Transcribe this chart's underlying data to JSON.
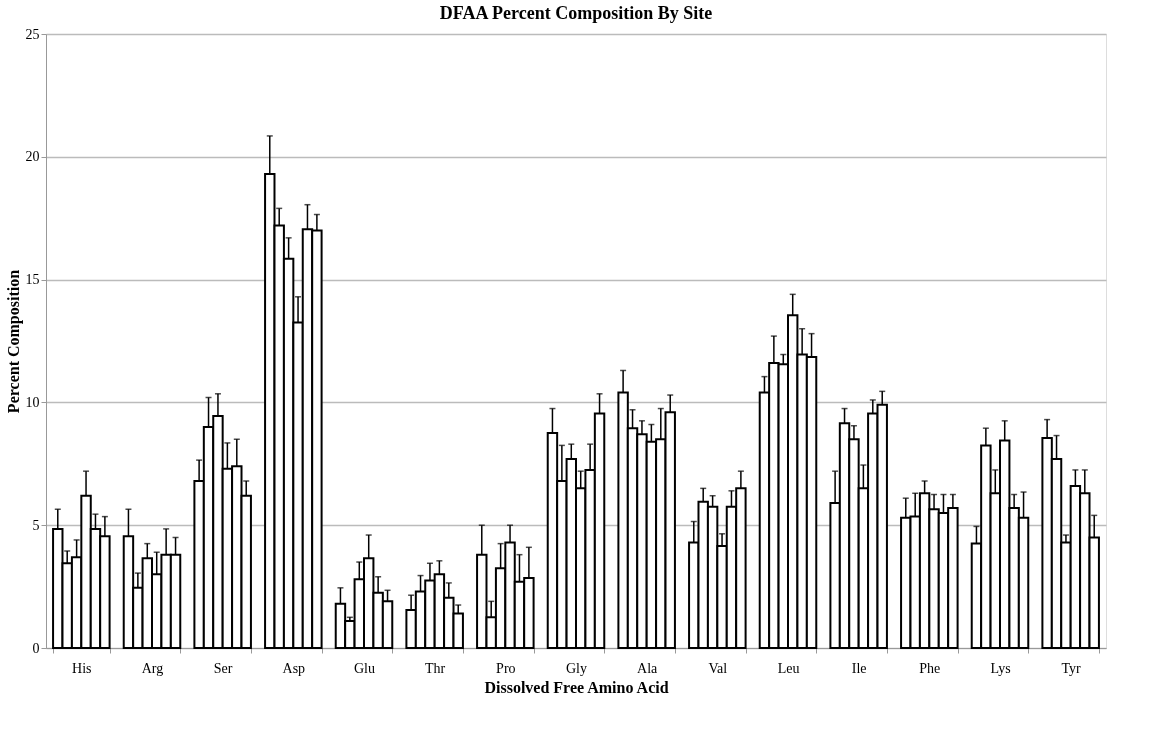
{
  "chart_data": {
    "type": "bar",
    "title": "DFAA Percent Composition By Site",
    "xlabel": "Dissolved Free Amino Acid",
    "ylabel": "Percent Composition",
    "categories": [
      "His",
      "Arg",
      "Ser",
      "Asp",
      "Glu",
      "Thr",
      "Pro",
      "Gly",
      "Ala",
      "Val",
      "Leu",
      "Ile",
      "Phe",
      "Lys",
      "Tyr"
    ],
    "series": [
      {
        "color": "#ffffff",
        "values": [
          4.85,
          4.55,
          6.8,
          19.3,
          1.8,
          1.55,
          3.8,
          8.75,
          10.4,
          4.3,
          10.4,
          5.9,
          5.3,
          4.25,
          8.55
        ],
        "errors": [
          [
            4.85,
            5.65
          ],
          [
            4.55,
            5.65
          ],
          [
            6.8,
            7.65
          ],
          [
            19.3,
            20.85
          ],
          [
            1.8,
            2.45
          ],
          [
            1.55,
            2.15
          ],
          [
            3.8,
            5.0
          ],
          [
            8.75,
            9.75
          ],
          [
            10.4,
            11.3
          ],
          [
            4.3,
            5.15
          ],
          [
            10.4,
            11.05
          ],
          [
            5.9,
            7.2
          ],
          [
            5.3,
            6.1
          ],
          [
            4.25,
            4.95
          ],
          [
            8.55,
            9.3
          ]
        ]
      },
      {
        "color": "#ffffff",
        "values": [
          3.45,
          2.45,
          9.0,
          17.2,
          1.1,
          2.3,
          1.25,
          6.8,
          8.95,
          5.95,
          11.6,
          9.15,
          5.35,
          8.25,
          7.7
        ],
        "errors": [
          [
            3.45,
            3.95
          ],
          [
            2.45,
            3.05
          ],
          [
            9.0,
            10.2
          ],
          [
            17.2,
            17.9
          ],
          [
            1.1,
            1.25
          ],
          [
            2.3,
            2.95
          ],
          [
            1.25,
            1.9
          ],
          [
            6.8,
            8.25
          ],
          [
            8.95,
            9.7
          ],
          [
            5.95,
            6.5
          ],
          [
            11.6,
            12.7
          ],
          [
            9.15,
            9.75
          ],
          [
            5.35,
            6.3
          ],
          [
            8.25,
            8.95
          ],
          [
            7.7,
            8.65
          ]
        ]
      },
      {
        "color": "#ffffff",
        "values": [
          3.7,
          3.65,
          9.45,
          15.85,
          2.8,
          2.75,
          3.25,
          7.7,
          8.7,
          5.75,
          11.55,
          8.5,
          6.3,
          6.3,
          4.3
        ],
        "errors": [
          [
            3.7,
            4.4
          ],
          [
            3.65,
            4.25
          ],
          [
            9.45,
            10.35
          ],
          [
            15.85,
            16.7
          ],
          [
            2.8,
            3.5
          ],
          [
            2.75,
            3.45
          ],
          [
            3.25,
            4.25
          ],
          [
            7.7,
            8.3
          ],
          [
            8.7,
            9.25
          ],
          [
            5.75,
            6.2
          ],
          [
            11.55,
            11.95
          ],
          [
            8.5,
            9.05
          ],
          [
            6.3,
            6.8
          ],
          [
            6.3,
            7.25
          ],
          [
            4.3,
            4.6
          ]
        ]
      },
      {
        "color": "#ffffff",
        "values": [
          6.2,
          3.0,
          7.3,
          13.25,
          3.65,
          3.0,
          4.3,
          6.5,
          8.4,
          4.15,
          13.55,
          6.5,
          5.65,
          8.45,
          6.6
        ],
        "errors": [
          [
            6.2,
            7.2
          ],
          [
            3.0,
            3.9
          ],
          [
            7.3,
            8.35
          ],
          [
            13.25,
            14.3
          ],
          [
            3.65,
            4.6
          ],
          [
            3.0,
            3.55
          ],
          [
            4.3,
            5.0
          ],
          [
            6.5,
            7.2
          ],
          [
            8.4,
            9.1
          ],
          [
            4.15,
            4.65
          ],
          [
            13.55,
            14.4
          ],
          [
            6.5,
            7.45
          ],
          [
            5.65,
            6.25
          ],
          [
            8.45,
            9.25
          ],
          [
            6.6,
            7.25
          ]
        ]
      },
      {
        "color": "#ffffff",
        "values": [
          4.85,
          3.8,
          7.4,
          17.05,
          2.25,
          2.05,
          2.7,
          7.25,
          8.5,
          5.75,
          11.95,
          9.55,
          5.5,
          5.7,
          6.3
        ],
        "errors": [
          [
            4.85,
            5.45
          ],
          [
            3.8,
            4.85
          ],
          [
            7.4,
            8.5
          ],
          [
            17.05,
            18.05
          ],
          [
            2.25,
            2.9
          ],
          [
            2.05,
            2.65
          ],
          [
            2.7,
            3.8
          ],
          [
            7.25,
            8.3
          ],
          [
            8.5,
            9.75
          ],
          [
            5.75,
            6.4
          ],
          [
            11.95,
            13.0
          ],
          [
            9.55,
            10.1
          ],
          [
            5.5,
            6.25
          ],
          [
            5.7,
            6.25
          ],
          [
            6.3,
            7.25
          ]
        ]
      },
      {
        "color": "#ffffff",
        "values": [
          4.55,
          3.8,
          6.2,
          17.0,
          1.9,
          1.4,
          2.85,
          9.55,
          9.6,
          6.5,
          11.85,
          9.9,
          5.7,
          5.3,
          4.5
        ],
        "errors": [
          [
            4.55,
            5.35
          ],
          [
            3.8,
            4.5
          ],
          [
            6.2,
            6.8
          ],
          [
            17.0,
            17.65
          ],
          [
            1.9,
            2.35
          ],
          [
            1.4,
            1.75
          ],
          [
            2.85,
            4.1
          ],
          [
            9.55,
            10.35
          ],
          [
            9.6,
            10.3
          ],
          [
            6.5,
            7.2
          ],
          [
            11.85,
            12.8
          ],
          [
            9.9,
            10.45
          ],
          [
            5.7,
            6.25
          ],
          [
            5.3,
            6.35
          ],
          [
            4.5,
            5.4
          ]
        ]
      }
    ],
    "ylim": [
      0,
      25
    ],
    "yticks": [
      0,
      5,
      10,
      15,
      20,
      25
    ],
    "grid": "y",
    "legend": false
  }
}
